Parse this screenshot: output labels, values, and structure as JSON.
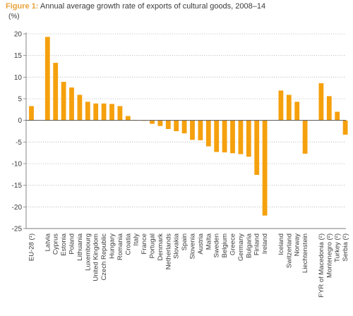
{
  "header": {
    "figure_label": "Figure 1:",
    "title": "Annual average growth rate of exports of cultural goods, 2008–14",
    "unit": "(%)"
  },
  "colors": {
    "bar": "#f5a00d",
    "grid": "#b9b9b9",
    "axis": "#7a7a7a",
    "title_accent": "#e8a23a"
  },
  "chart_data": {
    "type": "bar",
    "title": "Annual average growth rate of exports of cultural goods, 2008–14",
    "xlabel": "",
    "ylabel": "(%)",
    "ylim": [
      -25,
      20
    ],
    "yticks": [
      20,
      15,
      10,
      5,
      0,
      -5,
      -10,
      -15,
      -20,
      -25
    ],
    "grid": "horizontal dotted",
    "categories": [
      "EU-28 (¹)",
      "",
      "Latvia",
      "Cyprus",
      "Estonia",
      "Poland",
      "Lithuania",
      "Luxembourg",
      "United Kingdom",
      "Czech Republic",
      "Hungary",
      "Romania",
      "Croatia",
      "Italy",
      "France",
      "Portugal",
      "Denmark",
      "Netherlands",
      "Slovakia",
      "Spain",
      "Slovenia",
      "Austria",
      "Malta",
      "Sweden",
      "Belgium",
      "Greece",
      "Germany",
      "Bulgaria",
      "Finland",
      "Ireland",
      "",
      "Iceland",
      "Switzerland",
      "Norway",
      "Liechtenstein",
      "",
      "FYR of Macedonia (²)",
      "Montenegro (²)",
      "Turkey (²)",
      "Serbia (²)"
    ],
    "values": [
      3.3,
      null,
      19.3,
      13.3,
      8.9,
      7.6,
      5.9,
      4.3,
      3.9,
      3.9,
      3.8,
      3.3,
      1.0,
      0.1,
      0.0,
      -0.8,
      -1.3,
      -2.0,
      -2.5,
      -3.0,
      -4.5,
      -4.6,
      -6.0,
      -7.3,
      -7.4,
      -7.6,
      -7.8,
      -8.4,
      -12.6,
      -22.0,
      null,
      6.9,
      5.9,
      4.3,
      -7.7,
      null,
      8.6,
      5.6,
      2.0,
      -3.3
    ]
  }
}
